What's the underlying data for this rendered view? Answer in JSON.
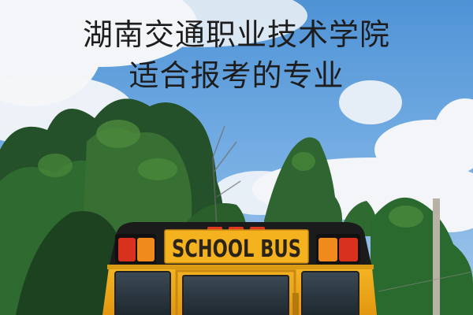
{
  "headline": {
    "line1": "湖南交通职业技术学院",
    "line2": "适合报考的专业"
  },
  "bus": {
    "sign_text": "SCHOOL BUS"
  },
  "colors": {
    "sky": "#5d9fd9",
    "cloud": "#f3f5f8",
    "tree_dark": "#1f4d22",
    "tree_light": "#3f7d35",
    "bus_yellow": "#f1a91b",
    "bus_sign": "#f5b21f",
    "bus_sign_text": "#2a2317",
    "bus_black": "#1b1b1b",
    "tail_light": "#d8321f",
    "amber_light": "#f08a1c",
    "headline_text": "#1d1d1d"
  }
}
